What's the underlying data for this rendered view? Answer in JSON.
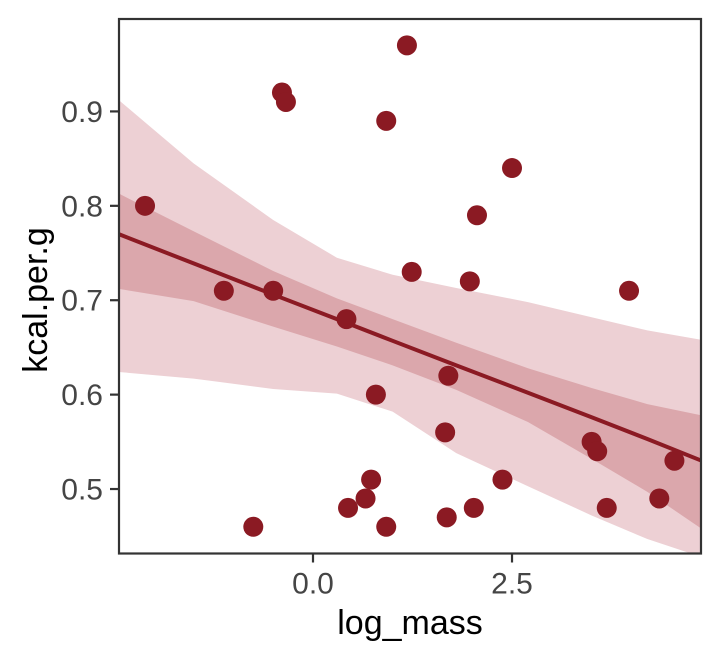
{
  "chart_data": {
    "type": "scatter",
    "title": "",
    "xlabel": "log_mass",
    "ylabel": "kcal.per.g",
    "xlim": [
      -2.437,
      4.874
    ],
    "ylim": [
      0.4317,
      0.9979
    ],
    "grid": false,
    "legend": "none",
    "x_ticks": [
      {
        "value": 0.0,
        "label": "0.0"
      },
      {
        "value": 2.5,
        "label": "2.5"
      }
    ],
    "y_ticks": [
      {
        "value": 0.5,
        "label": "0.5"
      },
      {
        "value": 0.6,
        "label": "0.6"
      },
      {
        "value": 0.7,
        "label": "0.7"
      },
      {
        "value": 0.8,
        "label": "0.8"
      },
      {
        "value": 0.9,
        "label": "0.9"
      }
    ],
    "points": [
      [
        -2.11,
        0.8
      ],
      [
        -1.12,
        0.71
      ],
      [
        -0.75,
        0.46
      ],
      [
        -0.5,
        0.71
      ],
      [
        -0.39,
        0.92
      ],
      [
        -0.34,
        0.91
      ],
      [
        0.42,
        0.68
      ],
      [
        0.44,
        0.48
      ],
      [
        0.66,
        0.49
      ],
      [
        0.73,
        0.51
      ],
      [
        0.79,
        0.6
      ],
      [
        0.92,
        0.89
      ],
      [
        0.92,
        0.46
      ],
      [
        1.18,
        0.97
      ],
      [
        1.24,
        0.73
      ],
      [
        1.66,
        0.56
      ],
      [
        1.68,
        0.47
      ],
      [
        1.7,
        0.62
      ],
      [
        1.97,
        0.72
      ],
      [
        2.02,
        0.48
      ],
      [
        2.06,
        0.79
      ],
      [
        2.38,
        0.51
      ],
      [
        2.5,
        0.84
      ],
      [
        3.5,
        0.55
      ],
      [
        3.57,
        0.54
      ],
      [
        3.69,
        0.48
      ],
      [
        3.97,
        0.71
      ],
      [
        4.35,
        0.49
      ],
      [
        4.54,
        0.53
      ]
    ],
    "regression": {
      "x": [
        -2.44,
        -1.5,
        -0.5,
        0.3,
        1.0,
        1.8,
        2.7,
        3.5,
        4.2,
        4.88
      ],
      "line": [
        0.77,
        0.739,
        0.706,
        0.68,
        0.657,
        0.631,
        0.602,
        0.576,
        0.553,
        0.53
      ],
      "outer_upper": [
        0.912,
        0.845,
        0.785,
        0.745,
        0.727,
        0.713,
        0.698,
        0.682,
        0.668,
        0.658
      ],
      "inner_upper": [
        0.813,
        0.773,
        0.731,
        0.702,
        0.68,
        0.655,
        0.628,
        0.607,
        0.59,
        0.578
      ],
      "inner_lower": [
        0.712,
        0.699,
        0.672,
        0.651,
        0.631,
        0.605,
        0.571,
        0.532,
        0.497,
        0.458
      ],
      "outer_lower": [
        0.624,
        0.617,
        0.606,
        0.601,
        0.582,
        0.538,
        0.503,
        0.472,
        0.447,
        0.428
      ]
    },
    "colors": {
      "point": "#8B1A23",
      "line": "#8B1A23",
      "inner_band": "#DBA7AC",
      "outer_band": "#EDD0D4",
      "axis_text": "#454545",
      "axis_title": "#000000",
      "panel_border": "#333333",
      "background": "#FFFFFF"
    }
  }
}
